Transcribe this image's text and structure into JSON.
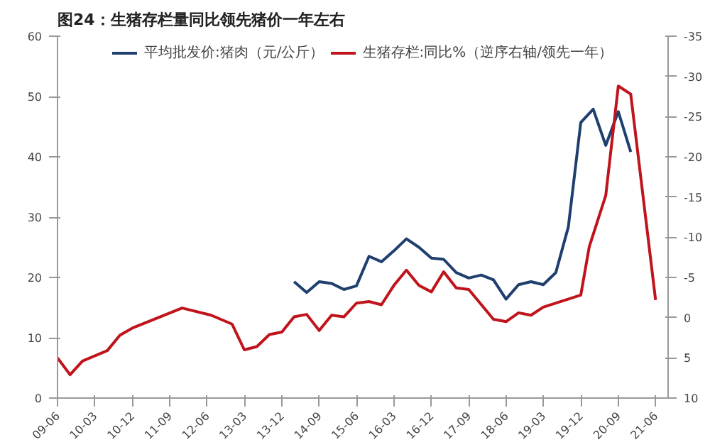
{
  "chart_data": {
    "type": "line",
    "title": "图24：生猪存栏量同比领先猪价一年左右",
    "xlim": [
      "2009-06",
      "2021-09"
    ],
    "xticks": [
      {
        "value": "2009-06",
        "label": "09-06"
      },
      {
        "value": "2010-03",
        "label": "10-03"
      },
      {
        "value": "2010-12",
        "label": "10-12"
      },
      {
        "value": "2011-09",
        "label": "11-09"
      },
      {
        "value": "2012-06",
        "label": "12-06"
      },
      {
        "value": "2013-03",
        "label": "13-03"
      },
      {
        "value": "2013-12",
        "label": "13-12"
      },
      {
        "value": "2014-09",
        "label": "14-09"
      },
      {
        "value": "2015-06",
        "label": "15-06"
      },
      {
        "value": "2016-03",
        "label": "16-03"
      },
      {
        "value": "2016-12",
        "label": "16-12"
      },
      {
        "value": "2017-09",
        "label": "17-09"
      },
      {
        "value": "2018-06",
        "label": "18-06"
      },
      {
        "value": "2019-03",
        "label": "19-03"
      },
      {
        "value": "2019-12",
        "label": "19-12"
      },
      {
        "value": "2020-09",
        "label": "20-09"
      },
      {
        "value": "2021-06",
        "label": "21-06"
      }
    ],
    "ylim": [
      0,
      60
    ],
    "yticks": [
      0,
      10,
      20,
      30,
      40,
      50,
      60
    ],
    "y2lim": [
      10,
      -35
    ],
    "y2ticks": [
      -35,
      -30,
      -25,
      -20,
      -15,
      -10,
      -5,
      0,
      5,
      10
    ],
    "grid": false,
    "legend": "top",
    "series": [
      {
        "name": "平均批发价:猪肉（元/公斤）",
        "color": "#1f3f6e",
        "x": [
          "2014-03",
          "2014-06",
          "2014-09",
          "2014-12",
          "2015-03",
          "2015-06",
          "2015-09",
          "2015-12",
          "2016-03",
          "2016-06",
          "2016-09",
          "2016-12",
          "2017-03",
          "2017-06",
          "2017-09",
          "2017-12",
          "2018-03",
          "2018-06",
          "2018-09",
          "2018-12",
          "2019-03",
          "2019-06",
          "2019-09",
          "2019-12",
          "2020-03",
          "2020-06",
          "2020-09",
          "2020-12"
        ],
        "values": [
          19.3,
          17.5,
          19.3,
          19.0,
          18.0,
          18.6,
          23.5,
          22.6,
          24.4,
          26.4,
          25.0,
          23.2,
          23.0,
          20.8,
          19.9,
          20.4,
          19.6,
          16.4,
          18.8,
          19.3,
          18.8,
          20.8,
          28.4,
          45.7,
          47.9,
          41.9,
          47.5,
          40.8
        ]
      },
      {
        "name": "生猪存栏:同比%（逆序右轴/领先一年）",
        "color": "#c0141c",
        "axis": "y2",
        "x": [
          "2009-06",
          "2009-09",
          "2009-12",
          "2010-06",
          "2010-09",
          "2010-12",
          "2011-12",
          "2012-07",
          "2012-12",
          "2013-03",
          "2013-06",
          "2013-09",
          "2013-12",
          "2014-03",
          "2014-06",
          "2014-09",
          "2014-12",
          "2015-03",
          "2015-06",
          "2015-09",
          "2015-12",
          "2016-03",
          "2016-06",
          "2016-09",
          "2016-12",
          "2017-03",
          "2017-06",
          "2017-09",
          "2018-03",
          "2018-06",
          "2018-09",
          "2018-12",
          "2019-03",
          "2019-12",
          "2020-02",
          "2020-06",
          "2020-09",
          "2020-12",
          "2021-06"
        ],
        "values": [
          5.0,
          7.1,
          5.4,
          4.1,
          2.2,
          1.3,
          -1.2,
          -0.3,
          0.8,
          4.0,
          3.6,
          2.1,
          1.8,
          -0.1,
          -0.4,
          1.6,
          -0.3,
          -0.1,
          -1.8,
          -2.0,
          -1.6,
          -4.0,
          -5.9,
          -4.0,
          -3.2,
          -5.7,
          -3.7,
          -3.5,
          0.2,
          0.5,
          -0.6,
          -0.3,
          -1.3,
          -2.8,
          -8.8,
          -15.2,
          -28.8,
          -27.8,
          -2.2
        ]
      }
    ]
  }
}
